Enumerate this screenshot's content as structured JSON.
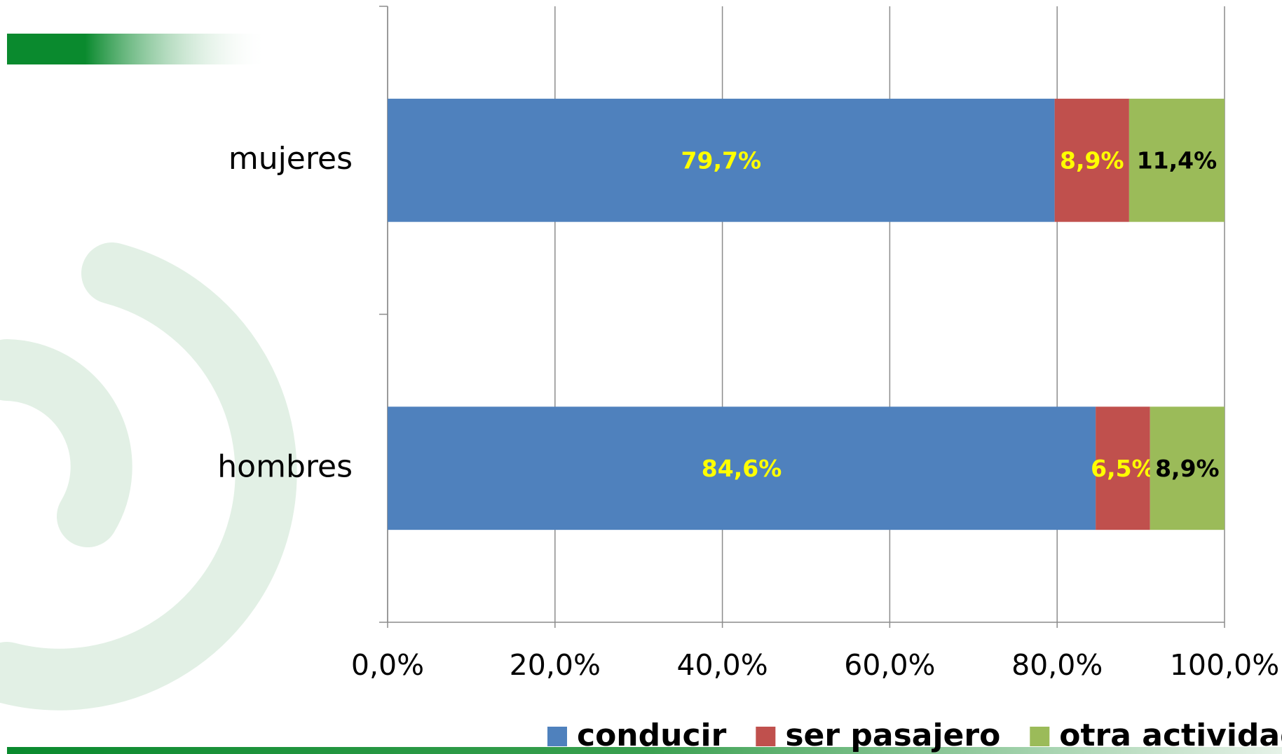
{
  "chart_data": {
    "type": "bar",
    "orientation": "horizontal",
    "stacked": true,
    "categories": [
      "mujeres",
      "hombres"
    ],
    "series": [
      {
        "name": "conducir",
        "color": "#4f81bd",
        "label_color": "#ffff00",
        "values": [
          79.7,
          84.6
        ],
        "value_labels": [
          "79,7%",
          "84,6%"
        ]
      },
      {
        "name": "ser pasajero",
        "color": "#c0504d",
        "label_color": "#ffff00",
        "values": [
          8.9,
          6.5
        ],
        "value_labels": [
          "8,9%",
          "6,5%"
        ]
      },
      {
        "name": "otra actividad",
        "color": "#9bbb59",
        "label_color": "#000000",
        "values": [
          11.4,
          8.9
        ],
        "value_labels": [
          "11,4%",
          "8,9%"
        ]
      }
    ],
    "xlim": [
      0,
      100
    ],
    "xticks": [
      {
        "value": 0,
        "label": "0,0%"
      },
      {
        "value": 20,
        "label": "20,0%"
      },
      {
        "value": 40,
        "label": "40,0%"
      },
      {
        "value": 60,
        "label": "60,0%"
      },
      {
        "value": 80,
        "label": "80,0%"
      },
      {
        "value": 100,
        "label": "100,0%"
      }
    ],
    "grid": true,
    "legend": "bottom"
  }
}
